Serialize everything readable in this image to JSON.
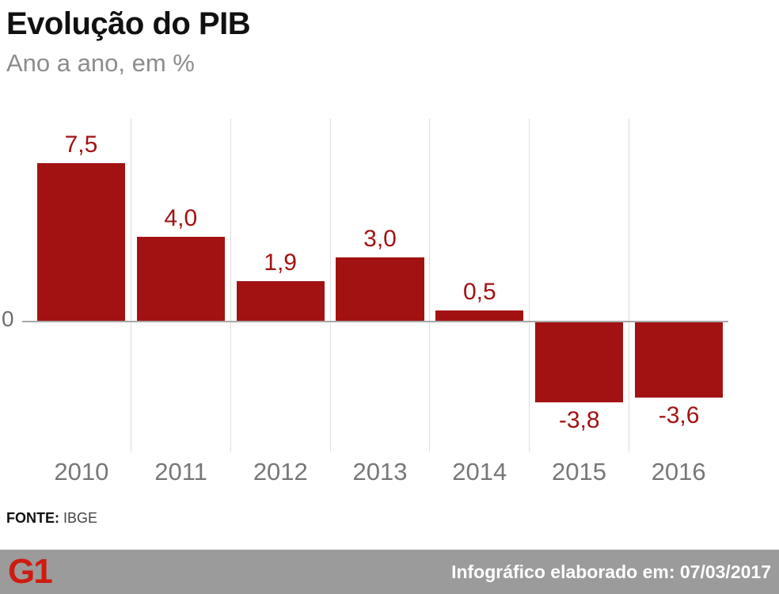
{
  "header": {
    "title": "Evolução do PIB",
    "subtitle": "Ano a ano, em %"
  },
  "chart_data": {
    "type": "bar",
    "title": "Evolução do PIB",
    "subtitle": "Ano a ano, em %",
    "categories": [
      "2010",
      "2011",
      "2012",
      "2013",
      "2014",
      "2015",
      "2016"
    ],
    "values": [
      7.5,
      4.0,
      1.9,
      3.0,
      0.5,
      -3.8,
      -3.6
    ],
    "value_labels": [
      "7,5",
      "4,0",
      "1,9",
      "3,0",
      "0,5",
      "-3,8",
      "-3,6"
    ],
    "xlabel": "",
    "ylabel": "",
    "unit": "%",
    "zero_label": "0",
    "ylim": [
      -5,
      8.5
    ],
    "bar_color": "#a31212",
    "label_color": "#a31212",
    "grid": "vertical column separators, horizontal zero line",
    "legend": "none"
  },
  "source": {
    "label": "FONTE:",
    "value": "IBGE"
  },
  "footer": {
    "logo": "G1",
    "logo_color": "#cf1b10",
    "bar_color": "#9b9b9b",
    "text": "Infográfico elaborado em: 07/03/2017"
  }
}
